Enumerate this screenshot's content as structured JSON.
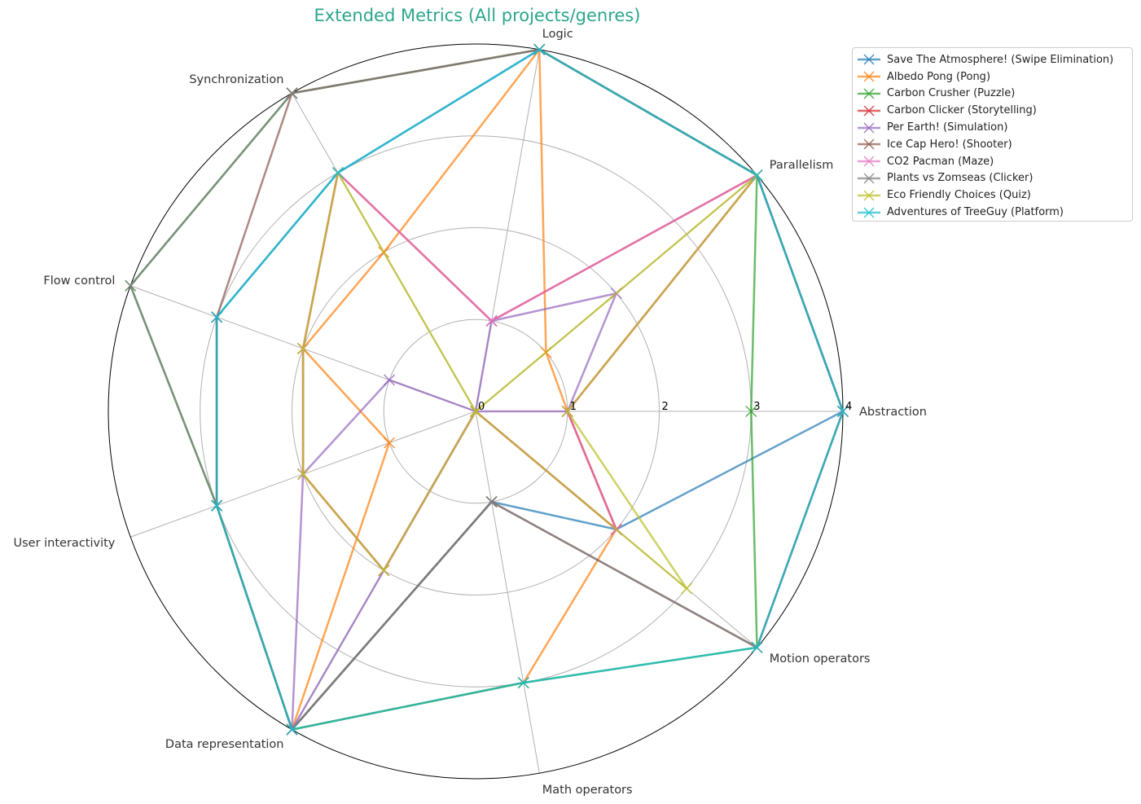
{
  "chart_data": {
    "type": "radar",
    "title": "Extended Metrics (All projects/genres)",
    "axes": [
      "Abstraction",
      "Parallelism",
      "Logic",
      "Synchronization",
      "Flow control",
      "User interactivity",
      "Data representation",
      "Math operators",
      "Motion operators"
    ],
    "tick_labels": [
      "0",
      "1",
      "2",
      "3",
      "4"
    ],
    "rlim": [
      0,
      4
    ],
    "grid": true,
    "legend_position": "top-right",
    "series": [
      {
        "name": "Save The Atmosphere! (Swipe Elimination)",
        "color": "#1f77b4",
        "values": [
          4,
          4,
          4,
          3,
          3,
          3,
          4,
          1,
          2
        ]
      },
      {
        "name": "Albedo Pong (Pong)",
        "color": "#ff7f0e",
        "values": [
          1,
          1,
          4,
          2,
          2,
          1,
          4,
          3,
          2
        ]
      },
      {
        "name": "Carbon Crusher (Puzzle)",
        "color": "#2ca02c",
        "values": [
          3,
          4,
          4,
          4,
          4,
          3,
          4,
          3,
          4
        ]
      },
      {
        "name": "Carbon Clicker (Storytelling)",
        "color": "#d62728",
        "values": [
          1,
          4,
          1,
          3,
          2,
          2,
          2,
          0,
          2
        ]
      },
      {
        "name": "Per Earth! (Simulation)",
        "color": "#9467bd",
        "values": [
          1,
          2,
          1,
          0,
          1,
          2,
          4,
          0,
          0
        ]
      },
      {
        "name": "Ice Cap Hero! (Shooter)",
        "color": "#8c564b",
        "values": [
          4,
          4,
          4,
          4,
          3,
          3,
          4,
          1,
          4
        ]
      },
      {
        "name": "CO2 Pacman (Maze)",
        "color": "#e377c2",
        "values": [
          1,
          4,
          1,
          3,
          2,
          2,
          2,
          0,
          2
        ]
      },
      {
        "name": "Plants vs Zomseas (Clicker)",
        "color": "#7f7f7f",
        "values": [
          4,
          4,
          4,
          4,
          4,
          3,
          4,
          1,
          4
        ]
      },
      {
        "name": "Eco Friendly Choices (Quiz)",
        "color": "#bcbd22",
        "values": [
          1,
          4,
          0,
          3,
          2,
          2,
          2,
          0,
          3
        ]
      },
      {
        "name": "Adventures of TreeGuy (Platform)",
        "color": "#17becf",
        "values": [
          4,
          4,
          4,
          3,
          3,
          3,
          4,
          3,
          4
        ]
      }
    ]
  }
}
